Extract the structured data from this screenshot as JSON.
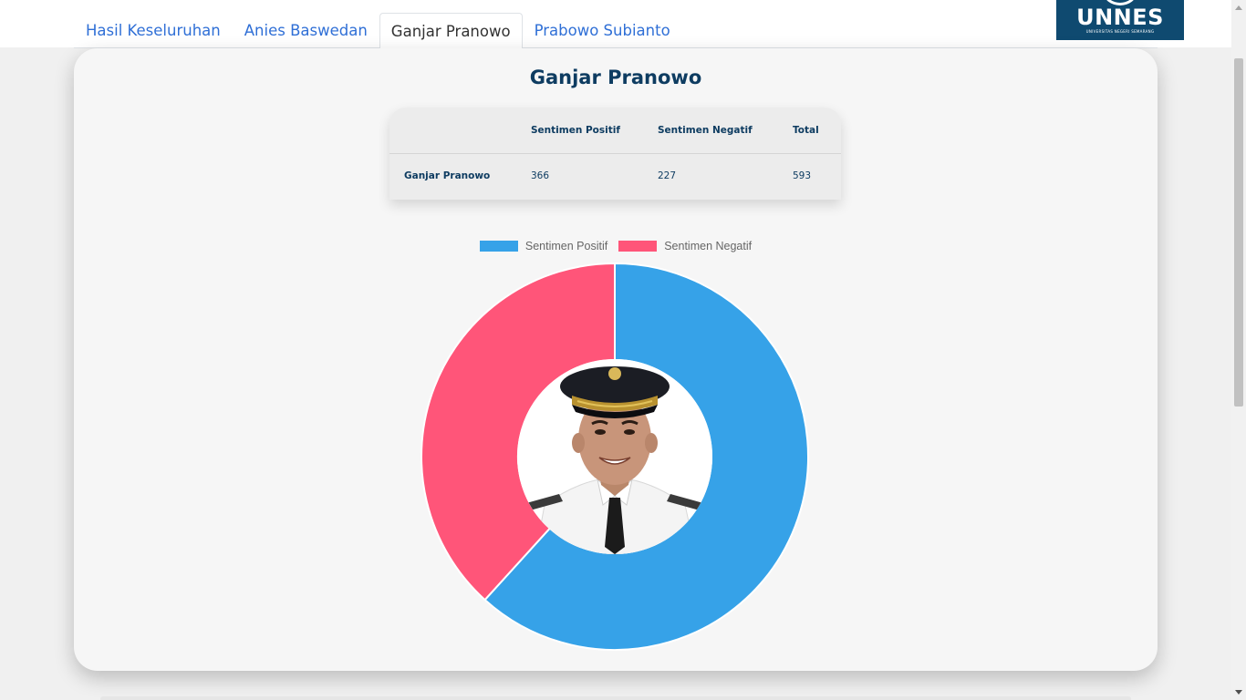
{
  "tabs": [
    {
      "label": "Hasil Keseluruhan",
      "active": false
    },
    {
      "label": "Anies Baswedan",
      "active": false
    },
    {
      "label": "Ganjar Pranowo",
      "active": true
    },
    {
      "label": "Prabowo Subianto",
      "active": false
    }
  ],
  "logo": {
    "text": "UNNES",
    "subtext": "UNIVERSITAS NEGERI SEMARANG"
  },
  "card": {
    "title": "Ganjar Pranowo"
  },
  "table": {
    "headers": [
      "",
      "Sentimen Positif",
      "Sentimen Negatif",
      "Total"
    ],
    "rows": [
      {
        "name": "Ganjar Pranowo",
        "positif": "366",
        "negatif": "227",
        "total": "593"
      }
    ]
  },
  "colors": {
    "positive": "#36a2e8",
    "negative": "#ff5579",
    "title": "#0e3c61",
    "tab_link": "#2f6fd6"
  },
  "chart_data": {
    "type": "pie",
    "title": "",
    "legend_position": "top",
    "labels": [
      "Sentimen Positif",
      "Sentimen Negatif"
    ],
    "values": [
      366,
      227
    ],
    "colors": [
      "#36a2e8",
      "#ff5579"
    ]
  }
}
